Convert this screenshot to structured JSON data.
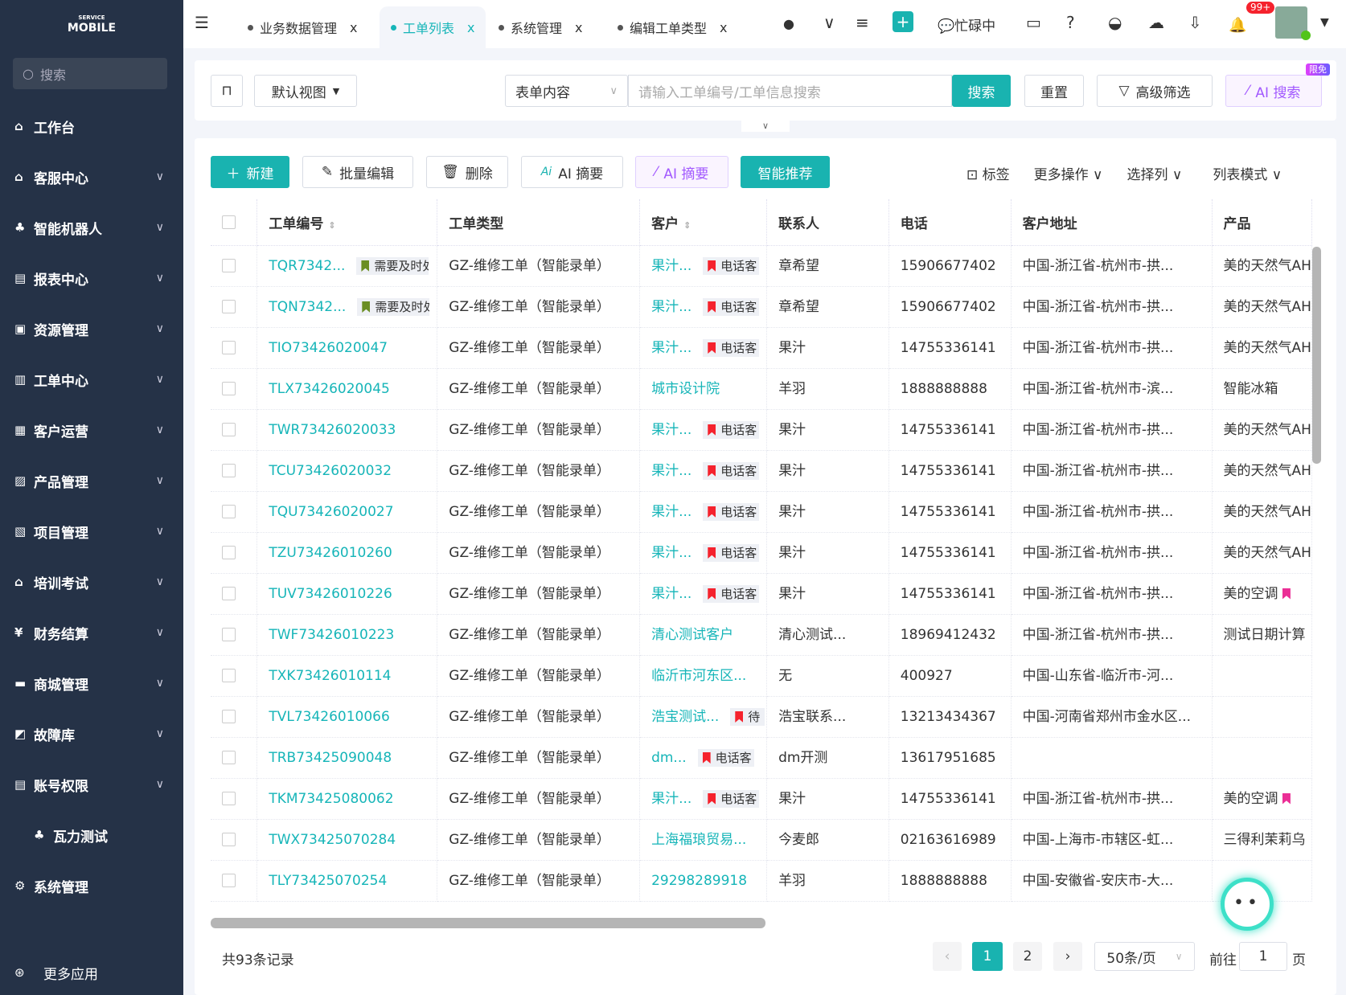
{
  "sidebar": {
    "logo_top": "SERVICE",
    "logo": "MOBILE",
    "search": "搜索",
    "items": [
      {
        "label": "工作台",
        "icon": "home-icon",
        "chev": false
      },
      {
        "label": "客服中心",
        "icon": "house-icon",
        "chev": true
      },
      {
        "label": "智能机器人",
        "icon": "org-chart-icon",
        "chev": true
      },
      {
        "label": "报表中心",
        "icon": "report-icon",
        "chev": true
      },
      {
        "label": "资源管理",
        "icon": "resource-icon",
        "chev": true
      },
      {
        "label": "工单中心",
        "icon": "ticket-icon",
        "chev": true
      },
      {
        "label": "客户运营",
        "icon": "customer-icon",
        "chev": true
      },
      {
        "label": "产品管理",
        "icon": "product-icon",
        "chev": true
      },
      {
        "label": "项目管理",
        "icon": "project-icon",
        "chev": true
      },
      {
        "label": "培训考试",
        "icon": "training-icon",
        "chev": true
      },
      {
        "label": "财务结算",
        "icon": "finance-icon",
        "chev": true
      },
      {
        "label": "商城管理",
        "icon": "mall-icon",
        "chev": true
      },
      {
        "label": "故障库",
        "icon": "fault-icon",
        "chev": true
      },
      {
        "label": "账号权限",
        "icon": "account-icon",
        "chev": true
      },
      {
        "label": "瓦力测试",
        "icon": "org-chart-icon",
        "chev": false,
        "sub": true
      },
      {
        "label": "系统管理",
        "icon": "gear-icon",
        "chev": false
      }
    ],
    "more": "更多应用"
  },
  "tabs": [
    {
      "label": "业务数据管理",
      "active": false
    },
    {
      "label": "工单列表",
      "active": true
    },
    {
      "label": "系统管理",
      "active": false
    },
    {
      "label": "编辑工单类型",
      "active": false
    }
  ],
  "topbar": {
    "status": "忙碌中",
    "badge": "99+"
  },
  "search": {
    "view": "默认视图",
    "field": "表单内容",
    "placeholder": "请输入工单编号/工单信息搜索",
    "search": "搜索",
    "reset": "重置",
    "advanced": "高级筛选",
    "ai_search": "AI 搜索",
    "limited": "限免"
  },
  "toolbar": {
    "new": "新建",
    "batch_edit": "批量编辑",
    "delete": "删除",
    "ai_summary1": "AI 摘要",
    "ai_summary2": "AI 摘要",
    "recommend": "智能推荐",
    "tag": "标签",
    "more": "更多操作",
    "columns": "选择列",
    "mode": "列表模式"
  },
  "table": {
    "headers": [
      "工单编号",
      "工单类型",
      "客户",
      "联系人",
      "电话",
      "客户地址",
      "产品"
    ],
    "rows": [
      {
        "id": "TQR7342...",
        "tag": "需要及时处",
        "tagColor": "#6b8e23",
        "type": "GZ-维修工单（智能录单）",
        "cust": "果汁...",
        "ctag": "电话客",
        "contact": "章希望",
        "phone": "15906677402",
        "addr": "中国-浙江省-杭州市-拱...",
        "prod": "美的天然气AH"
      },
      {
        "id": "TQN7342...",
        "tag": "需要及时处",
        "tagColor": "#6b8e23",
        "type": "GZ-维修工单（智能录单）",
        "cust": "果汁...",
        "ctag": "电话客",
        "contact": "章希望",
        "phone": "15906677402",
        "addr": "中国-浙江省-杭州市-拱...",
        "prod": "美的天然气AH"
      },
      {
        "id": "TIO73426020047",
        "type": "GZ-维修工单（智能录单）",
        "cust": "果汁...",
        "ctag": "电话客",
        "contact": "果汁",
        "phone": "14755336141",
        "addr": "中国-浙江省-杭州市-拱...",
        "prod": "美的天然气AH"
      },
      {
        "id": "TLX73426020045",
        "type": "GZ-维修工单（智能录单）",
        "cust": "城市设计院",
        "contact": "羊羽",
        "phone": "1888888888",
        "addr": "中国-浙江省-杭州市-滨...",
        "prod": "智能冰箱"
      },
      {
        "id": "TWR73426020033",
        "type": "GZ-维修工单（智能录单）",
        "cust": "果汁...",
        "ctag": "电话客",
        "contact": "果汁",
        "phone": "14755336141",
        "addr": "中国-浙江省-杭州市-拱...",
        "prod": "美的天然气AH"
      },
      {
        "id": "TCU73426020032",
        "type": "GZ-维修工单（智能录单）",
        "cust": "果汁...",
        "ctag": "电话客",
        "contact": "果汁",
        "phone": "14755336141",
        "addr": "中国-浙江省-杭州市-拱...",
        "prod": "美的天然气AH"
      },
      {
        "id": "TQU73426020027",
        "type": "GZ-维修工单（智能录单）",
        "cust": "果汁...",
        "ctag": "电话客",
        "contact": "果汁",
        "phone": "14755336141",
        "addr": "中国-浙江省-杭州市-拱...",
        "prod": "美的天然气AH"
      },
      {
        "id": "TZU73426010260",
        "type": "GZ-维修工单（智能录单）",
        "cust": "果汁...",
        "ctag": "电话客",
        "contact": "果汁",
        "phone": "14755336141",
        "addr": "中国-浙江省-杭州市-拱...",
        "prod": "美的天然气AH"
      },
      {
        "id": "TUV73426010226",
        "type": "GZ-维修工单（智能录单）",
        "cust": "果汁...",
        "ctag": "电话客",
        "contact": "果汁",
        "phone": "14755336141",
        "addr": "中国-浙江省-杭州市-拱...",
        "prod": "美的空调",
        "ptag": true
      },
      {
        "id": "TWF73426010223",
        "type": "GZ-维修工单（智能录单）",
        "cust": "清心测试客户",
        "contact": "清心测试...",
        "phone": "18969412432",
        "addr": "中国-浙江省-杭州市-拱...",
        "prod": "测试日期计算"
      },
      {
        "id": "TXK73426010114",
        "type": "GZ-维修工单（智能录单）",
        "cust": "临沂市河东区...",
        "contact": "无",
        "phone": "400927",
        "addr": "中国-山东省-临沂市-河...",
        "prod": ""
      },
      {
        "id": "TVL73426010066",
        "type": "GZ-维修工单（智能录单）",
        "cust": "浩宝测试...",
        "ctag": "待",
        "contact": "浩宝联系...",
        "phone": "13213434367",
        "addr": "中国-河南省郑州市金水区...",
        "prod": ""
      },
      {
        "id": "TRB73425090048",
        "type": "GZ-维修工单（智能录单）",
        "cust": "dm...",
        "ctag": "电话客",
        "contact": "dm开测",
        "phone": "13617951685",
        "addr": "",
        "prod": ""
      },
      {
        "id": "TKM73425080062",
        "type": "GZ-维修工单（智能录单）",
        "cust": "果汁...",
        "ctag": "电话客",
        "contact": "果汁",
        "phone": "14755336141",
        "addr": "中国-浙江省-杭州市-拱...",
        "prod": "美的空调",
        "ptag": true
      },
      {
        "id": "TWX73425070284",
        "type": "GZ-维修工单（智能录单）",
        "cust": "上海福琅贸易...",
        "contact": "今麦郎",
        "phone": "02163616989",
        "addr": "中国-上海市-市辖区-虹...",
        "prod": "三得利茉莉乌"
      },
      {
        "id": "TLY73425070254",
        "type": "GZ-维修工单（智能录单）",
        "cust": "29298289918",
        "contact": "羊羽",
        "phone": "1888888888",
        "addr": "中国-安徽省-安庆市-大...",
        "prod": ""
      }
    ]
  },
  "pagination": {
    "total": "共93条记录",
    "pages": [
      "1",
      "2"
    ],
    "current": "1",
    "size": "50条/页",
    "goto": "前往",
    "goto_value": "1",
    "page_unit": "页"
  },
  "colors": {
    "accent": "#16b5b8",
    "sidebar": "#253247",
    "flag": "#f5222d",
    "ai": "#a259ff"
  }
}
